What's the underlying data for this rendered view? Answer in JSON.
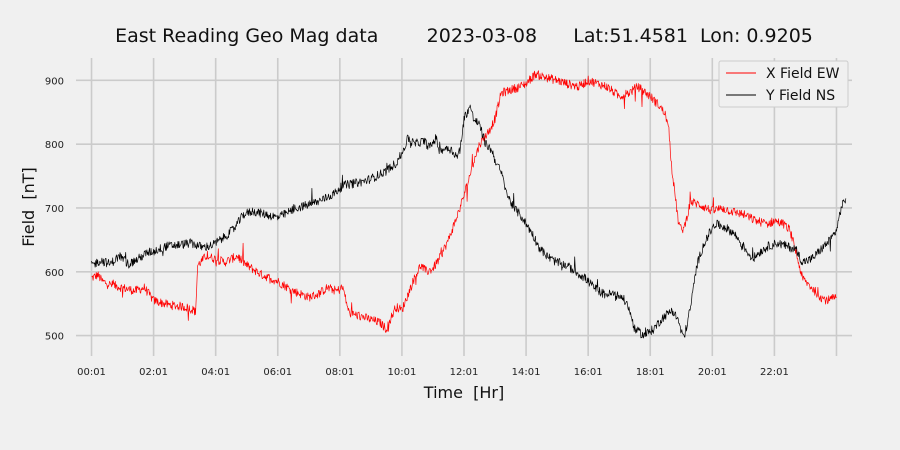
{
  "chart_data": {
    "type": "line",
    "title": "East Reading Geo Mag data        2023-03-08      Lat:51.4581  Lon: 0.9205",
    "xlabel": "Time  [Hr]",
    "ylabel": "Field  [nT]",
    "x_unit": "hour",
    "xlim": [
      -0.5,
      24.5
    ],
    "ylim": [
      468,
      935
    ],
    "x_ticks": [
      0,
      2,
      4,
      6,
      8,
      10,
      12,
      14,
      16,
      18,
      20,
      22,
      24
    ],
    "x_tick_labels": [
      "00:01",
      "02:01",
      "04:01",
      "06:01",
      "08:01",
      "10:01",
      "12:01",
      "14:01",
      "16:01",
      "18:01",
      "20:01",
      "22:01",
      ""
    ],
    "y_ticks": [
      500,
      600,
      700,
      800,
      900
    ],
    "y_tick_labels": [
      "500",
      "600",
      "700",
      "800",
      "900"
    ],
    "grid": true,
    "legend": "top-right",
    "series": [
      {
        "name": "X Field EW",
        "color": "#ff0000",
        "points": [
          [
            0,
            590
          ],
          [
            0.2,
            595
          ],
          [
            0.35,
            585
          ],
          [
            0.6,
            580
          ],
          [
            1,
            575
          ],
          [
            1.4,
            570
          ],
          [
            1.7,
            575
          ],
          [
            2,
            555
          ],
          [
            2.5,
            548
          ],
          [
            3,
            545
          ],
          [
            3.3,
            540
          ],
          [
            3.35,
            535
          ],
          [
            3.42,
            610
          ],
          [
            3.7,
            625
          ],
          [
            4,
            620
          ],
          [
            4.3,
            615
          ],
          [
            4.7,
            625
          ],
          [
            5,
            610
          ],
          [
            5.5,
            595
          ],
          [
            6,
            585
          ],
          [
            6.5,
            570
          ],
          [
            7,
            560
          ],
          [
            7.3,
            565
          ],
          [
            7.6,
            575
          ],
          [
            7.9,
            570
          ],
          [
            8.1,
            575
          ],
          [
            8.2,
            555
          ],
          [
            8.3,
            535
          ],
          [
            8.7,
            530
          ],
          [
            9,
            525
          ],
          [
            9.3,
            520
          ],
          [
            9.5,
            510
          ],
          [
            9.8,
            545
          ],
          [
            10,
            540
          ],
          [
            10.2,
            565
          ],
          [
            10.4,
            590
          ],
          [
            10.6,
            610
          ],
          [
            10.8,
            600
          ],
          [
            11,
            605
          ],
          [
            11.2,
            620
          ],
          [
            11.5,
            650
          ],
          [
            11.8,
            690
          ],
          [
            12,
            720
          ],
          [
            12.3,
            770
          ],
          [
            12.5,
            800
          ],
          [
            12.8,
            820
          ],
          [
            13,
            840
          ],
          [
            13.2,
            880
          ],
          [
            13.5,
            885
          ],
          [
            13.8,
            890
          ],
          [
            14,
            895
          ],
          [
            14.3,
            910
          ],
          [
            14.6,
            905
          ],
          [
            15,
            900
          ],
          [
            15.3,
            895
          ],
          [
            15.7,
            890
          ],
          [
            16,
            900
          ],
          [
            16.3,
            895
          ],
          [
            16.6,
            890
          ],
          [
            17,
            875
          ],
          [
            17.3,
            880
          ],
          [
            17.6,
            890
          ],
          [
            18,
            875
          ],
          [
            18.3,
            860
          ],
          [
            18.5,
            845
          ],
          [
            18.6,
            820
          ],
          [
            18.7,
            760
          ],
          [
            18.8,
            720
          ],
          [
            18.9,
            680
          ],
          [
            19,
            665
          ],
          [
            19.1,
            670
          ],
          [
            19.3,
            710
          ],
          [
            19.6,
            705
          ],
          [
            20,
            695
          ],
          [
            20.3,
            700
          ],
          [
            20.6,
            695
          ],
          [
            21,
            690
          ],
          [
            21.4,
            680
          ],
          [
            21.8,
            675
          ],
          [
            22,
            680
          ],
          [
            22.3,
            675
          ],
          [
            22.5,
            665
          ],
          [
            22.7,
            630
          ],
          [
            22.9,
            590
          ],
          [
            23.2,
            575
          ],
          [
            23.5,
            560
          ],
          [
            23.7,
            555
          ],
          [
            24,
            560
          ]
        ]
      },
      {
        "name": "Y Field NS",
        "color": "#000000",
        "points": [
          [
            0,
            610
          ],
          [
            0.3,
            618
          ],
          [
            0.6,
            612
          ],
          [
            0.9,
            625
          ],
          [
            1.2,
            612
          ],
          [
            1.5,
            620
          ],
          [
            1.8,
            630
          ],
          [
            2,
            632
          ],
          [
            2.4,
            640
          ],
          [
            2.8,
            642
          ],
          [
            3.2,
            645
          ],
          [
            3.6,
            638
          ],
          [
            3.9,
            642
          ],
          [
            4,
            645
          ],
          [
            4.3,
            655
          ],
          [
            4.6,
            668
          ],
          [
            4.9,
            690
          ],
          [
            5.2,
            695
          ],
          [
            5.6,
            690
          ],
          [
            6,
            685
          ],
          [
            6.3,
            692
          ],
          [
            6.6,
            700
          ],
          [
            7,
            705
          ],
          [
            7.4,
            712
          ],
          [
            7.8,
            722
          ],
          [
            8.1,
            735
          ],
          [
            8.4,
            738
          ],
          [
            8.8,
            742
          ],
          [
            9.1,
            748
          ],
          [
            9.5,
            758
          ],
          [
            9.8,
            770
          ],
          [
            10,
            785
          ],
          [
            10.2,
            810
          ],
          [
            10.4,
            800
          ],
          [
            10.7,
            805
          ],
          [
            10.9,
            795
          ],
          [
            11.1,
            810
          ],
          [
            11.2,
            790
          ],
          [
            11.5,
            795
          ],
          [
            11.8,
            780
          ],
          [
            11.9,
            800
          ],
          [
            12,
            840
          ],
          [
            12.2,
            860
          ],
          [
            12.3,
            840
          ],
          [
            12.5,
            830
          ],
          [
            12.7,
            800
          ],
          [
            12.9,
            790
          ],
          [
            13,
            775
          ],
          [
            13.2,
            755
          ],
          [
            13.4,
            720
          ],
          [
            13.6,
            700
          ],
          [
            13.8,
            690
          ],
          [
            14,
            675
          ],
          [
            14.2,
            660
          ],
          [
            14.4,
            640
          ],
          [
            14.6,
            628
          ],
          [
            14.8,
            620
          ],
          [
            15,
            615
          ],
          [
            15.3,
            610
          ],
          [
            15.6,
            600
          ],
          [
            15.9,
            590
          ],
          [
            16.2,
            575
          ],
          [
            16.5,
            565
          ],
          [
            16.8,
            565
          ],
          [
            17.1,
            560
          ],
          [
            17.3,
            545
          ],
          [
            17.5,
            510
          ],
          [
            17.8,
            500
          ],
          [
            18.1,
            510
          ],
          [
            18.4,
            528
          ],
          [
            18.7,
            540
          ],
          [
            18.9,
            525
          ],
          [
            19,
            505
          ],
          [
            19.1,
            498
          ],
          [
            19.3,
            545
          ],
          [
            19.5,
            610
          ],
          [
            19.7,
            640
          ],
          [
            19.9,
            660
          ],
          [
            20.1,
            675
          ],
          [
            20.4,
            670
          ],
          [
            20.7,
            660
          ],
          [
            21,
            640
          ],
          [
            21.3,
            620
          ],
          [
            21.5,
            630
          ],
          [
            21.8,
            640
          ],
          [
            22.1,
            645
          ],
          [
            22.4,
            640
          ],
          [
            22.7,
            635
          ],
          [
            22.9,
            615
          ],
          [
            23.2,
            620
          ],
          [
            23.5,
            635
          ],
          [
            23.8,
            650
          ],
          [
            24,
            665
          ],
          [
            24.15,
            700
          ],
          [
            24.3,
            715
          ]
        ]
      }
    ]
  }
}
